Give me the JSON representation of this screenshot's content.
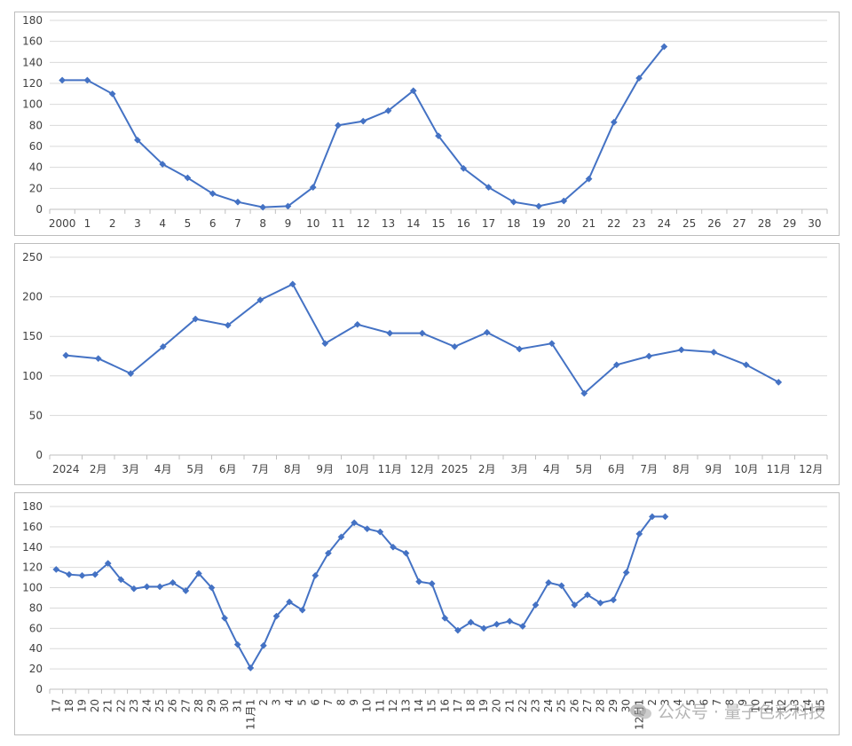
{
  "chart_data": [
    {
      "type": "line",
      "ylim": [
        0,
        180
      ],
      "yticks": [
        0,
        20,
        40,
        60,
        80,
        100,
        120,
        140,
        160,
        180
      ],
      "categories": [
        "2000",
        "1",
        "2",
        "3",
        "4",
        "5",
        "6",
        "7",
        "8",
        "9",
        "10",
        "11",
        "12",
        "13",
        "14",
        "15",
        "16",
        "17",
        "18",
        "19",
        "20",
        "21",
        "22",
        "23",
        "24",
        "25",
        "26",
        "27",
        "28",
        "29",
        "30"
      ],
      "series": [
        {
          "values": [
            123,
            123,
            110,
            66,
            43,
            30,
            15,
            7,
            2,
            3,
            21,
            80,
            84,
            94,
            113,
            70,
            39,
            21,
            7,
            3,
            8,
            29,
            83,
            125,
            155,
            null,
            null,
            null,
            null,
            null,
            null
          ]
        }
      ],
      "grid": true
    },
    {
      "type": "line",
      "ylim": [
        0,
        250
      ],
      "yticks": [
        0,
        50,
        100,
        150,
        200,
        250
      ],
      "categories": [
        "2024",
        "2月",
        "3月",
        "4月",
        "5月",
        "6月",
        "7月",
        "8月",
        "9月",
        "10月",
        "11月",
        "12月",
        "2025",
        "2月",
        "3月",
        "4月",
        "5月",
        "6月",
        "7月",
        "8月",
        "9月",
        "10月",
        "11月",
        "12月"
      ],
      "series": [
        {
          "values": [
            126,
            122,
            103,
            137,
            172,
            164,
            196,
            216,
            141,
            165,
            154,
            154,
            137,
            155,
            134,
            141,
            78,
            114,
            125,
            133,
            130,
            114,
            92,
            null
          ]
        }
      ],
      "grid": true
    },
    {
      "type": "line",
      "ylim": [
        0,
        180
      ],
      "yticks": [
        0,
        20,
        40,
        60,
        80,
        100,
        120,
        140,
        160,
        180
      ],
      "categories": [
        "17",
        "18",
        "19",
        "20",
        "21",
        "22",
        "23",
        "24",
        "25",
        "26",
        "27",
        "28",
        "29",
        "30",
        "31",
        "11月1",
        "2",
        "3",
        "4",
        "5",
        "6",
        "7",
        "8",
        "9",
        "10",
        "11",
        "12",
        "13",
        "14",
        "15",
        "16",
        "17",
        "18",
        "19",
        "20",
        "21",
        "22",
        "23",
        "24",
        "25",
        "26",
        "27",
        "28",
        "29",
        "30",
        "12月1",
        "2",
        "3",
        "4",
        "5",
        "6",
        "7",
        "8",
        "9",
        "10",
        "11",
        "12",
        "13",
        "14",
        "15"
      ],
      "series": [
        {
          "values": [
            118,
            113,
            112,
            113,
            124,
            108,
            99,
            101,
            101,
            105,
            97,
            114,
            100,
            70,
            44,
            21,
            43,
            72,
            86,
            78,
            112,
            134,
            150,
            164,
            158,
            155,
            140,
            134,
            106,
            104,
            70,
            58,
            66,
            60,
            64,
            67,
            62,
            83,
            105,
            102,
            83,
            93,
            85,
            88,
            115,
            153,
            170,
            170,
            null,
            null,
            null,
            null,
            null,
            null,
            null,
            null,
            null,
            null,
            null,
            null
          ]
        }
      ],
      "grid": true
    }
  ],
  "colors": {
    "series": "#4472c4",
    "grid": "#d9d9d9",
    "border": "#bdbdbd"
  },
  "watermark": {
    "text": "公众号 · 量子色彩科技",
    "icon": "wechat-icon"
  }
}
